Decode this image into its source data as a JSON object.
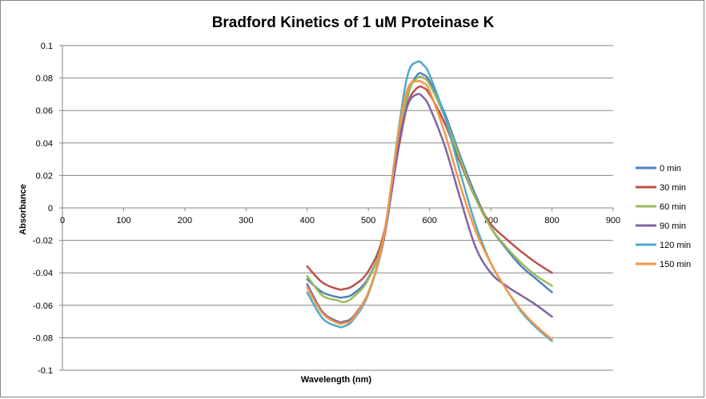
{
  "chart_data": {
    "type": "line",
    "title": "Bradford Kinetics of 1 uM Proteinase K",
    "xlabel": "Wavelength (nm)",
    "ylabel": "Absorbance",
    "xlim": [
      0,
      900
    ],
    "ylim": [
      -0.1,
      0.1
    ],
    "x_ticks": [
      "0",
      "100",
      "200",
      "300",
      "400",
      "500",
      "600",
      "700",
      "800",
      "900"
    ],
    "y_ticks": [
      "0.1",
      "0.08",
      "0.06",
      "0.04",
      "0.02",
      "0",
      "-0.02",
      "-0.04",
      "-0.06",
      "-0.08",
      "-0.1"
    ],
    "grid": true,
    "legend_position": "right",
    "x": [
      400,
      425,
      450,
      460,
      475,
      500,
      525,
      550,
      565,
      580,
      590,
      600,
      625,
      650,
      675,
      700,
      725,
      750,
      775,
      800
    ],
    "series": [
      {
        "name": "0 min",
        "color": "#4F81BD",
        "values": [
          -0.044,
          -0.052,
          -0.055,
          -0.055,
          -0.053,
          -0.043,
          -0.018,
          0.04,
          0.07,
          0.082,
          0.082,
          0.078,
          0.058,
          0.032,
          0.008,
          -0.012,
          -0.025,
          -0.036,
          -0.044,
          -0.052
        ]
      },
      {
        "name": "30 min",
        "color": "#C0504D",
        "values": [
          -0.036,
          -0.046,
          -0.05,
          -0.05,
          -0.048,
          -0.039,
          -0.016,
          0.038,
          0.065,
          0.074,
          0.074,
          0.07,
          0.052,
          0.028,
          0.006,
          -0.01,
          -0.019,
          -0.027,
          -0.034,
          -0.04
        ]
      },
      {
        "name": "60 min",
        "color": "#9BBB59",
        "values": [
          -0.042,
          -0.054,
          -0.057,
          -0.058,
          -0.055,
          -0.044,
          -0.018,
          0.042,
          0.071,
          0.08,
          0.08,
          0.076,
          0.056,
          0.03,
          0.006,
          -0.012,
          -0.024,
          -0.034,
          -0.042,
          -0.048
        ]
      },
      {
        "name": "90 min",
        "color": "#8064A2",
        "values": [
          -0.047,
          -0.064,
          -0.07,
          -0.07,
          -0.067,
          -0.052,
          -0.02,
          0.04,
          0.064,
          0.07,
          0.068,
          0.062,
          0.038,
          0.006,
          -0.024,
          -0.04,
          -0.048,
          -0.054,
          -0.06,
          -0.067
        ]
      },
      {
        "name": "120 min",
        "color": "#4BACC6",
        "values": [
          -0.052,
          -0.068,
          -0.073,
          -0.073,
          -0.069,
          -0.053,
          -0.018,
          0.05,
          0.083,
          0.09,
          0.088,
          0.082,
          0.056,
          0.022,
          -0.01,
          -0.034,
          -0.05,
          -0.064,
          -0.074,
          -0.082
        ]
      },
      {
        "name": "150 min",
        "color": "#F79646",
        "values": [
          -0.049,
          -0.065,
          -0.071,
          -0.071,
          -0.068,
          -0.052,
          -0.018,
          0.048,
          0.074,
          0.078,
          0.077,
          0.072,
          0.046,
          0.014,
          -0.014,
          -0.034,
          -0.05,
          -0.063,
          -0.073,
          -0.081
        ]
      }
    ]
  }
}
